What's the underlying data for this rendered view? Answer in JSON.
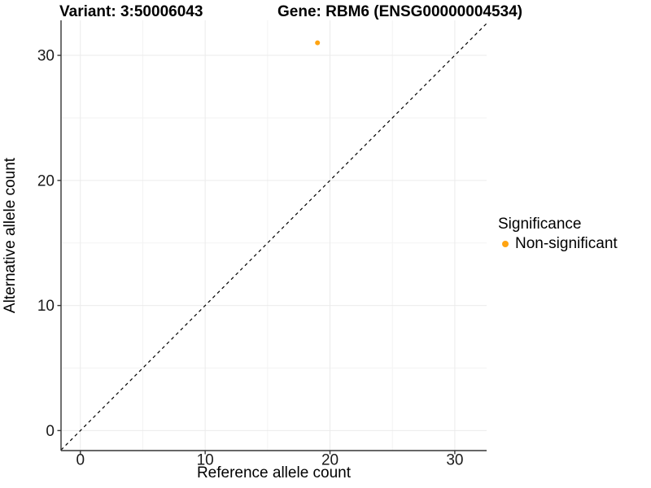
{
  "figure": {
    "title_variant": "Variant: 3:50006043",
    "title_gene": "Gene: RBM6 (ENSG00000004534)"
  },
  "legend": {
    "title": "Significance",
    "items": [
      {
        "label": "Non-significant",
        "color": "#FFA412"
      }
    ]
  },
  "chart_data": {
    "type": "scatter",
    "title": "Variant: 3:50006043 / Gene: RBM6 (ENSG00000004534)",
    "xlabel": "Reference allele count",
    "ylabel": "Alternative allele count",
    "series": [
      {
        "name": "Non-significant",
        "color": "#FFA412",
        "points": [
          {
            "x": 19,
            "y": 31
          }
        ],
        "point_radius_px": 3
      }
    ],
    "reference_line": {
      "kind": "identity",
      "slope": 1,
      "intercept": 0,
      "style": "dashed",
      "color": "#000000"
    },
    "x_ticks": [
      0,
      10,
      20,
      30
    ],
    "y_ticks": [
      0,
      10,
      20,
      30
    ],
    "x_minor_ticks": [
      5,
      15,
      25
    ],
    "y_minor_ticks": [
      5,
      15,
      25
    ],
    "xlim": [
      -1.55,
      32.55
    ],
    "ylim": [
      -1.6,
      32.8
    ],
    "grid": true,
    "legend_position": "right",
    "legend_title": "Significance"
  },
  "style": {
    "grid_major_color": "#EBEBEB",
    "grid_minor_color": "#F3F3F3",
    "axis_line_color": "#343434",
    "tick_label_color": "#1a1a1a",
    "background": "#FFFFFF"
  }
}
